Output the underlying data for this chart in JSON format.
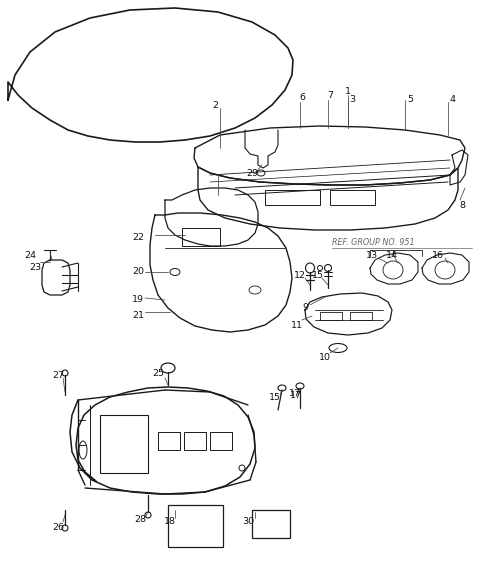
{
  "bg_color": "#ffffff",
  "line_color": "#1a1a1a",
  "ref_color": "#666666",
  "text_color": "#111111",
  "fig_width": 4.8,
  "fig_height": 5.76,
  "dpi": 100,
  "ref_text": "REF. GROUP NO. 951"
}
